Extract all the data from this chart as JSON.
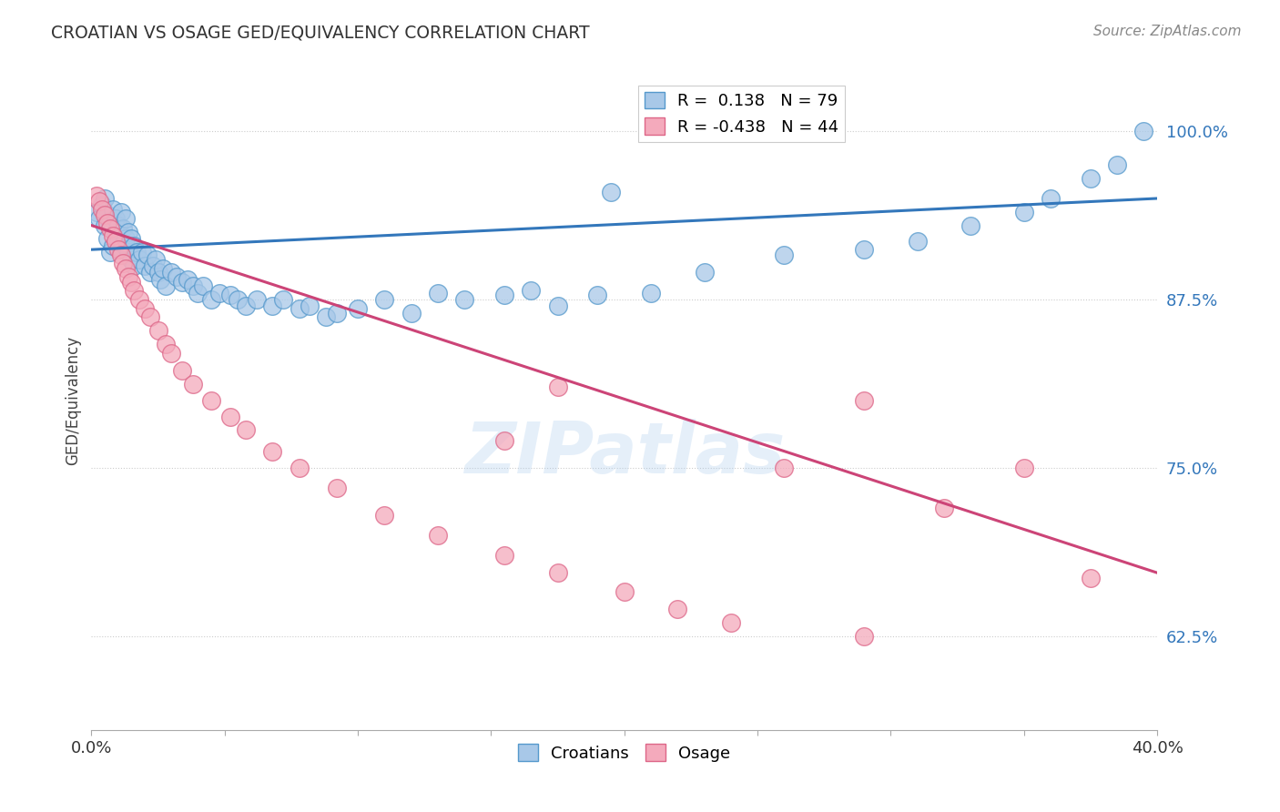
{
  "title": "CROATIAN VS OSAGE GED/EQUIVALENCY CORRELATION CHART",
  "source": "Source: ZipAtlas.com",
  "ylabel": "GED/Equivalency",
  "ytick_values": [
    1.0,
    0.875,
    0.75,
    0.625
  ],
  "xmin": 0.0,
  "xmax": 0.4,
  "ymin": 0.555,
  "ymax": 1.045,
  "legend_blue_r": "0.138",
  "legend_blue_n": "79",
  "legend_pink_r": "-0.438",
  "legend_pink_n": "44",
  "blue_fill": "#a8c8e8",
  "blue_edge": "#5599cc",
  "pink_fill": "#f4aabc",
  "pink_edge": "#dd6688",
  "blue_line_color": "#3377bb",
  "pink_line_color": "#cc4477",
  "watermark": "ZIPatlas",
  "blue_scatter_x": [
    0.002,
    0.003,
    0.004,
    0.005,
    0.005,
    0.006,
    0.006,
    0.007,
    0.007,
    0.008,
    0.008,
    0.009,
    0.009,
    0.01,
    0.01,
    0.011,
    0.011,
    0.012,
    0.012,
    0.013,
    0.013,
    0.014,
    0.014,
    0.015,
    0.015,
    0.016,
    0.016,
    0.017,
    0.018,
    0.019,
    0.02,
    0.021,
    0.022,
    0.023,
    0.024,
    0.025,
    0.026,
    0.027,
    0.028,
    0.03,
    0.032,
    0.034,
    0.036,
    0.038,
    0.04,
    0.042,
    0.045,
    0.048,
    0.052,
    0.055,
    0.058,
    0.062,
    0.068,
    0.072,
    0.078,
    0.082,
    0.088,
    0.092,
    0.1,
    0.11,
    0.12,
    0.13,
    0.14,
    0.155,
    0.165,
    0.175,
    0.19,
    0.21,
    0.23,
    0.26,
    0.29,
    0.31,
    0.33,
    0.35,
    0.36,
    0.375,
    0.385,
    0.395,
    0.195
  ],
  "blue_scatter_y": [
    0.94,
    0.935,
    0.945,
    0.95,
    0.93,
    0.938,
    0.92,
    0.932,
    0.91,
    0.942,
    0.915,
    0.935,
    0.925,
    0.93,
    0.918,
    0.94,
    0.912,
    0.928,
    0.916,
    0.935,
    0.92,
    0.925,
    0.91,
    0.92,
    0.905,
    0.915,
    0.9,
    0.91,
    0.905,
    0.91,
    0.9,
    0.908,
    0.895,
    0.9,
    0.905,
    0.895,
    0.89,
    0.898,
    0.885,
    0.895,
    0.892,
    0.888,
    0.89,
    0.885,
    0.88,
    0.885,
    0.875,
    0.88,
    0.878,
    0.875,
    0.87,
    0.875,
    0.87,
    0.875,
    0.868,
    0.87,
    0.862,
    0.865,
    0.868,
    0.875,
    0.865,
    0.88,
    0.875,
    0.878,
    0.882,
    0.87,
    0.878,
    0.88,
    0.895,
    0.908,
    0.912,
    0.918,
    0.93,
    0.94,
    0.95,
    0.965,
    0.975,
    1.0,
    0.955
  ],
  "pink_scatter_x": [
    0.002,
    0.003,
    0.004,
    0.005,
    0.006,
    0.007,
    0.008,
    0.009,
    0.01,
    0.011,
    0.012,
    0.013,
    0.014,
    0.015,
    0.016,
    0.018,
    0.02,
    0.022,
    0.025,
    0.028,
    0.03,
    0.034,
    0.038,
    0.045,
    0.052,
    0.058,
    0.068,
    0.078,
    0.092,
    0.11,
    0.13,
    0.155,
    0.175,
    0.2,
    0.22,
    0.24,
    0.26,
    0.29,
    0.32,
    0.35,
    0.375,
    0.155,
    0.175,
    0.29
  ],
  "pink_scatter_y": [
    0.952,
    0.948,
    0.942,
    0.938,
    0.932,
    0.928,
    0.922,
    0.918,
    0.912,
    0.908,
    0.902,
    0.898,
    0.892,
    0.888,
    0.882,
    0.875,
    0.868,
    0.862,
    0.852,
    0.842,
    0.835,
    0.822,
    0.812,
    0.8,
    0.788,
    0.778,
    0.762,
    0.75,
    0.735,
    0.715,
    0.7,
    0.685,
    0.672,
    0.658,
    0.645,
    0.635,
    0.75,
    0.8,
    0.72,
    0.75,
    0.668,
    0.77,
    0.81,
    0.625
  ],
  "blue_trend_x": [
    0.0,
    0.4
  ],
  "blue_trend_y": [
    0.912,
    0.95
  ],
  "pink_trend_x": [
    0.0,
    0.4
  ],
  "pink_trend_y": [
    0.93,
    0.672
  ]
}
